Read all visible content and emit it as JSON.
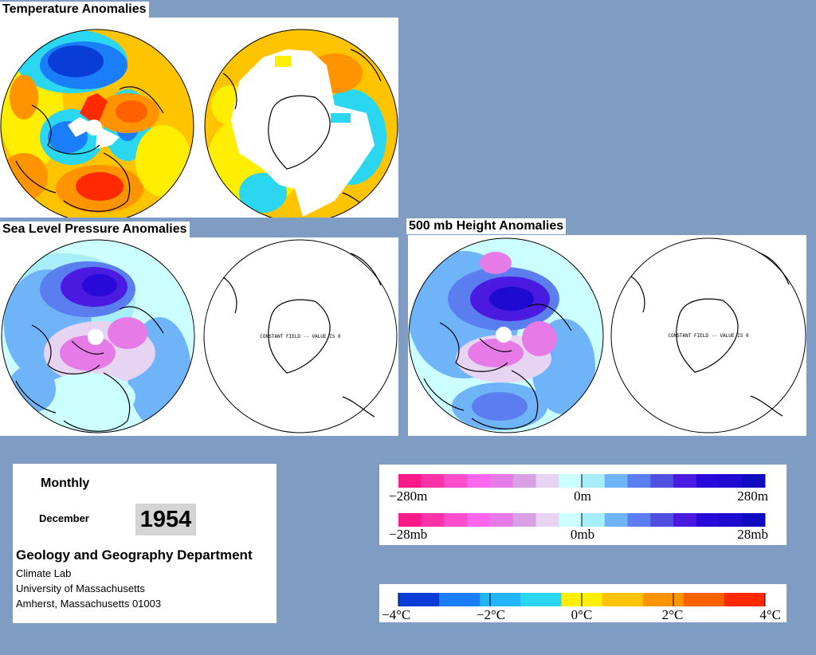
{
  "panels": {
    "temperature": {
      "title": "Temperature Anomalies"
    },
    "slp": {
      "title": "Sea Level Pressure Anomalies",
      "south_note": "CONSTANT FIELD -- VALUE IS 0"
    },
    "height": {
      "title": "500 mb Height Anomalies",
      "south_note": "CONSTANT FIELD -- VALUE IS 0"
    }
  },
  "info": {
    "period": "Monthly",
    "month": "December",
    "year": "1954",
    "department": "Geology and Geography Department",
    "lab": "Climate Lab",
    "university": "University of Massachusetts",
    "address": "Amherst, Massachusetts 01003"
  },
  "legends": {
    "height": {
      "labels": [
        "−280m",
        "0m",
        "280m"
      ]
    },
    "pressure": {
      "labels": [
        "−28mb",
        "0mb",
        "28mb"
      ]
    },
    "temperature": {
      "labels": [
        "−4°C",
        "−2°C",
        "0°C",
        "2°C",
        "4°C"
      ]
    },
    "anomaly_colors": [
      "#ff1a8c",
      "#ff33a8",
      "#ff4dcc",
      "#ff66ee",
      "#e67ae6",
      "#d9a0e6",
      "#e6d4f2",
      "#ccffff",
      "#a8eef8",
      "#6fb4f8",
      "#5a7ef0",
      "#5050e0",
      "#4a1ae0",
      "#2a0ad8",
      "#1e0ad0",
      "#100ac0"
    ],
    "temp_colors": [
      "#0a3cd8",
      "#1a7ef8",
      "#22b6f8",
      "#2ad6f0",
      "#ffee00",
      "#ffc400",
      "#ff9400",
      "#ff6000",
      "#ff2a00"
    ]
  }
}
